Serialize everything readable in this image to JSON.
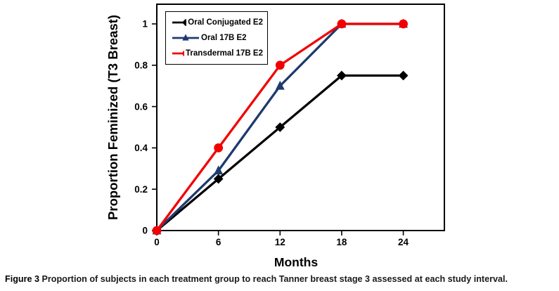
{
  "figure": {
    "caption_label": "Figure 3",
    "caption_text": "Proportion of subjects in each treatment group to reach Tanner breast stage 3 assessed at each study interval."
  },
  "chart_data": {
    "type": "line",
    "title": "",
    "xlabel": "Months",
    "ylabel": "Proportion Feminized (T3 Breast)",
    "x": [
      0,
      6,
      12,
      18,
      24
    ],
    "x_tick_labels": [
      "0",
      "6",
      "12",
      "18",
      "24"
    ],
    "y_ticks": [
      0,
      0.2,
      0.4,
      0.6,
      0.8,
      1
    ],
    "y_tick_labels": [
      "0",
      "0.2",
      "0.4",
      "0.6",
      "0.8",
      "1"
    ],
    "xlim": [
      0,
      28
    ],
    "ylim": [
      0,
      1.1
    ],
    "grid": false,
    "legend_position": "top-left-inside",
    "series": [
      {
        "name": "Oral Conjugated E2",
        "marker": "diamond",
        "color": "#000000",
        "values": [
          0,
          0.25,
          0.5,
          0.75,
          0.75
        ]
      },
      {
        "name": "Oral 17B E2",
        "marker": "triangle",
        "color": "#1e3a6e",
        "values": [
          0,
          0.29,
          0.7,
          1,
          1
        ]
      },
      {
        "name": "Transdermal 17B E2",
        "marker": "circle",
        "color": "#f20000",
        "values": [
          0,
          0.4,
          0.8,
          1,
          1
        ]
      }
    ]
  }
}
